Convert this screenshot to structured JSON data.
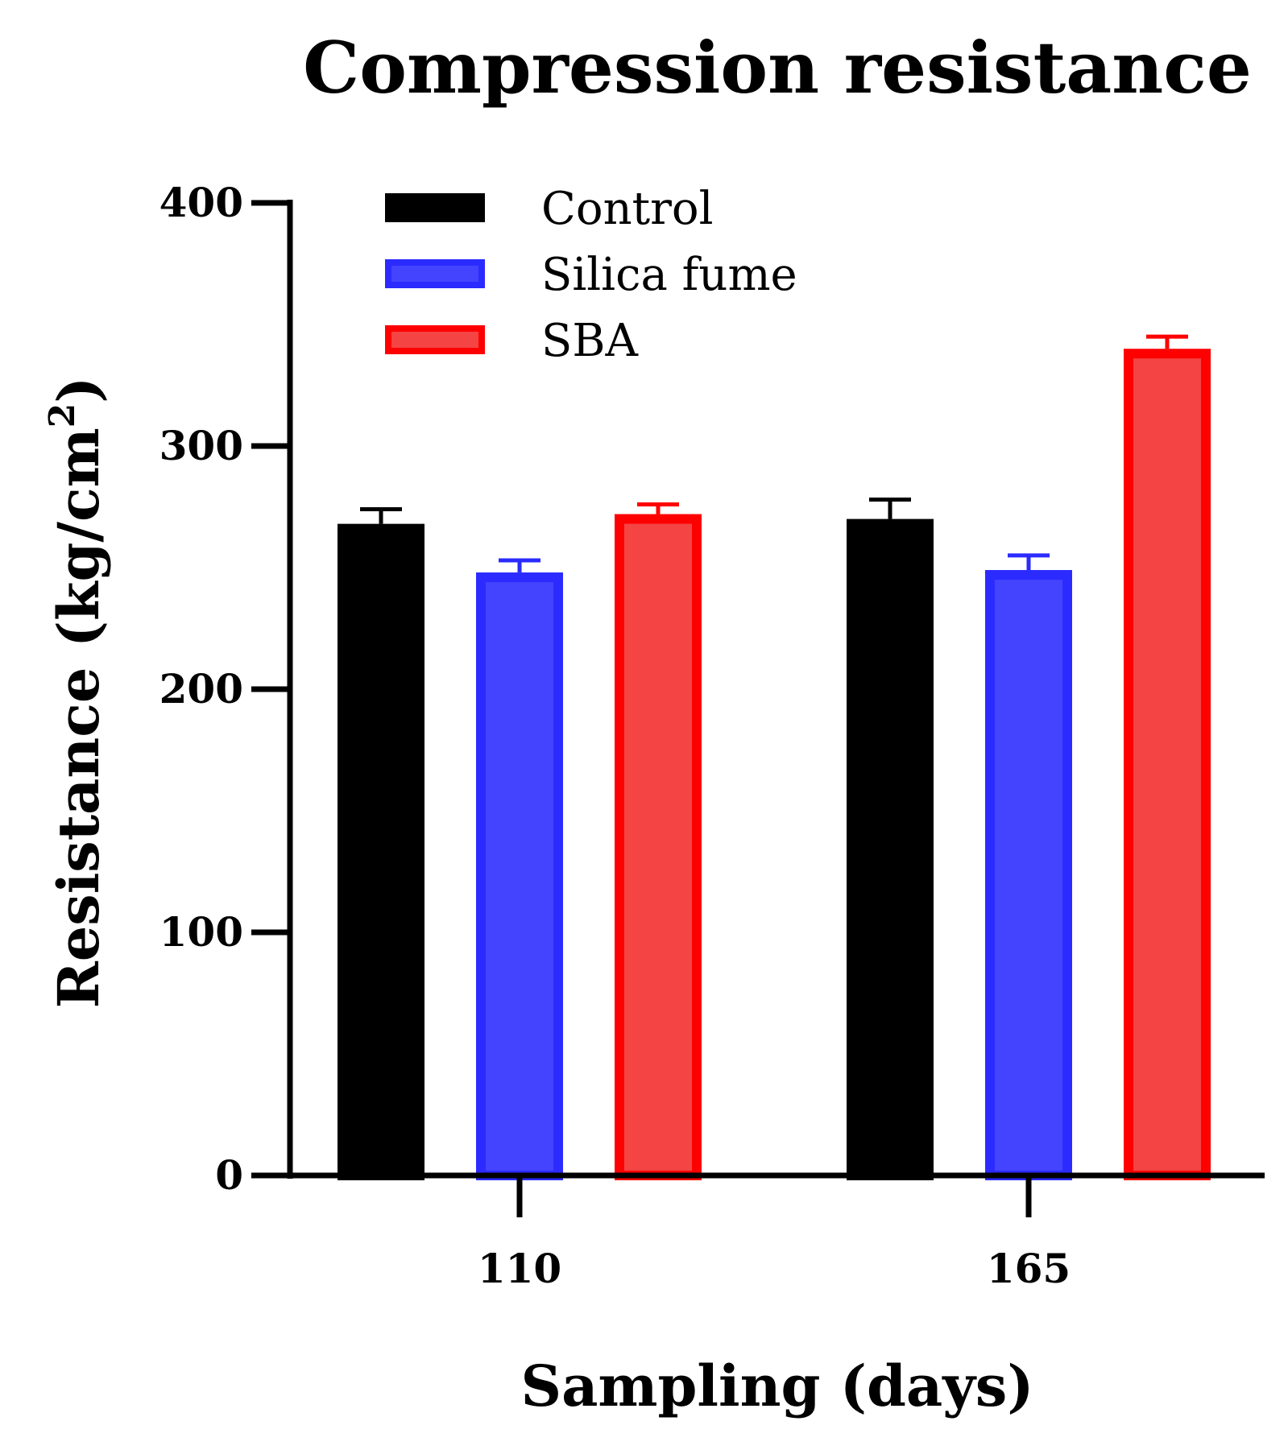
{
  "chart_data": {
    "type": "bar",
    "title": "Compression resistance",
    "xlabel": "Sampling (days)",
    "ylabel": "Resistance (kg/cm",
    "ylabel_superscript": "2",
    "ylabel_suffix": ")",
    "ylim": [
      0,
      400
    ],
    "yticks": [
      "0",
      "100",
      "200",
      "300",
      "400"
    ],
    "categories": [
      "110",
      "165"
    ],
    "series": [
      {
        "name": "Control",
        "color": "#000000",
        "fill": "#000000",
        "values": [
          268,
          270
        ],
        "errors": [
          6,
          8
        ]
      },
      {
        "name": "Silica fume",
        "color": "#2b2bff",
        "fill": "#4444ff",
        "values": [
          248,
          249
        ],
        "errors": [
          5,
          6
        ]
      },
      {
        "name": "SBA",
        "color": "#ff0000",
        "fill": "#f44444",
        "values": [
          272,
          340
        ],
        "errors": [
          4,
          5
        ]
      }
    ],
    "legend_position": "top-left"
  }
}
